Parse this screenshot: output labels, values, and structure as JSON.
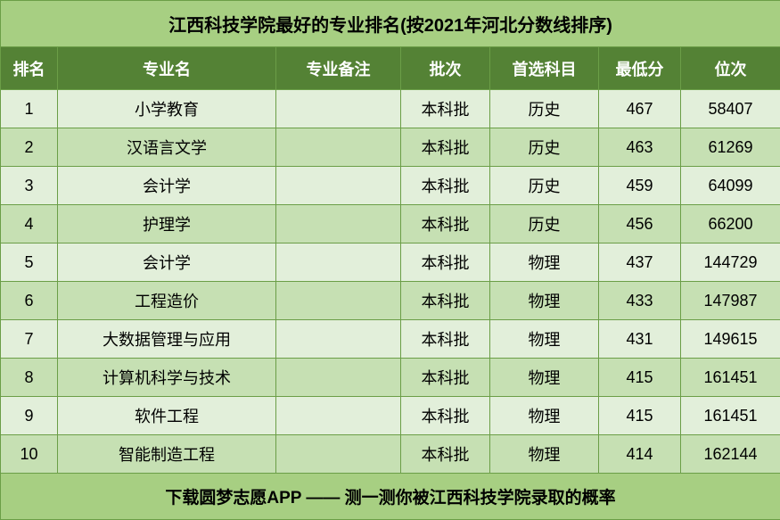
{
  "title": "江西科技学院最好的专业排名(按2021年河北分数线排序)",
  "footer": "下载圆梦志愿APP —— 测一测你被江西科技学院录取的概率",
  "columns": [
    "排名",
    "专业名",
    "专业备注",
    "批次",
    "首选科目",
    "最低分",
    "位次"
  ],
  "rows": [
    {
      "rank": "1",
      "major": "小学教育",
      "note": "",
      "batch": "本科批",
      "subject": "历史",
      "score": "467",
      "position": "58407"
    },
    {
      "rank": "2",
      "major": "汉语言文学",
      "note": "",
      "batch": "本科批",
      "subject": "历史",
      "score": "463",
      "position": "61269"
    },
    {
      "rank": "3",
      "major": "会计学",
      "note": "",
      "batch": "本科批",
      "subject": "历史",
      "score": "459",
      "position": "64099"
    },
    {
      "rank": "4",
      "major": "护理学",
      "note": "",
      "batch": "本科批",
      "subject": "历史",
      "score": "456",
      "position": "66200"
    },
    {
      "rank": "5",
      "major": "会计学",
      "note": "",
      "batch": "本科批",
      "subject": "物理",
      "score": "437",
      "position": "144729"
    },
    {
      "rank": "6",
      "major": "工程造价",
      "note": "",
      "batch": "本科批",
      "subject": "物理",
      "score": "433",
      "position": "147987"
    },
    {
      "rank": "7",
      "major": "大数据管理与应用",
      "note": "",
      "batch": "本科批",
      "subject": "物理",
      "score": "431",
      "position": "149615"
    },
    {
      "rank": "8",
      "major": "计算机科学与技术",
      "note": "",
      "batch": "本科批",
      "subject": "物理",
      "score": "415",
      "position": "161451"
    },
    {
      "rank": "9",
      "major": "软件工程",
      "note": "",
      "batch": "本科批",
      "subject": "物理",
      "score": "415",
      "position": "161451"
    },
    {
      "rank": "10",
      "major": "智能制造工程",
      "note": "",
      "batch": "本科批",
      "subject": "物理",
      "score": "414",
      "position": "162144"
    }
  ],
  "colors": {
    "header_bg": "#548235",
    "header_text": "#ffffff",
    "odd_row_bg": "#e2efda",
    "even_row_bg": "#c6e0b3",
    "title_bg": "#a7cf82",
    "border": "#6b9e47"
  }
}
